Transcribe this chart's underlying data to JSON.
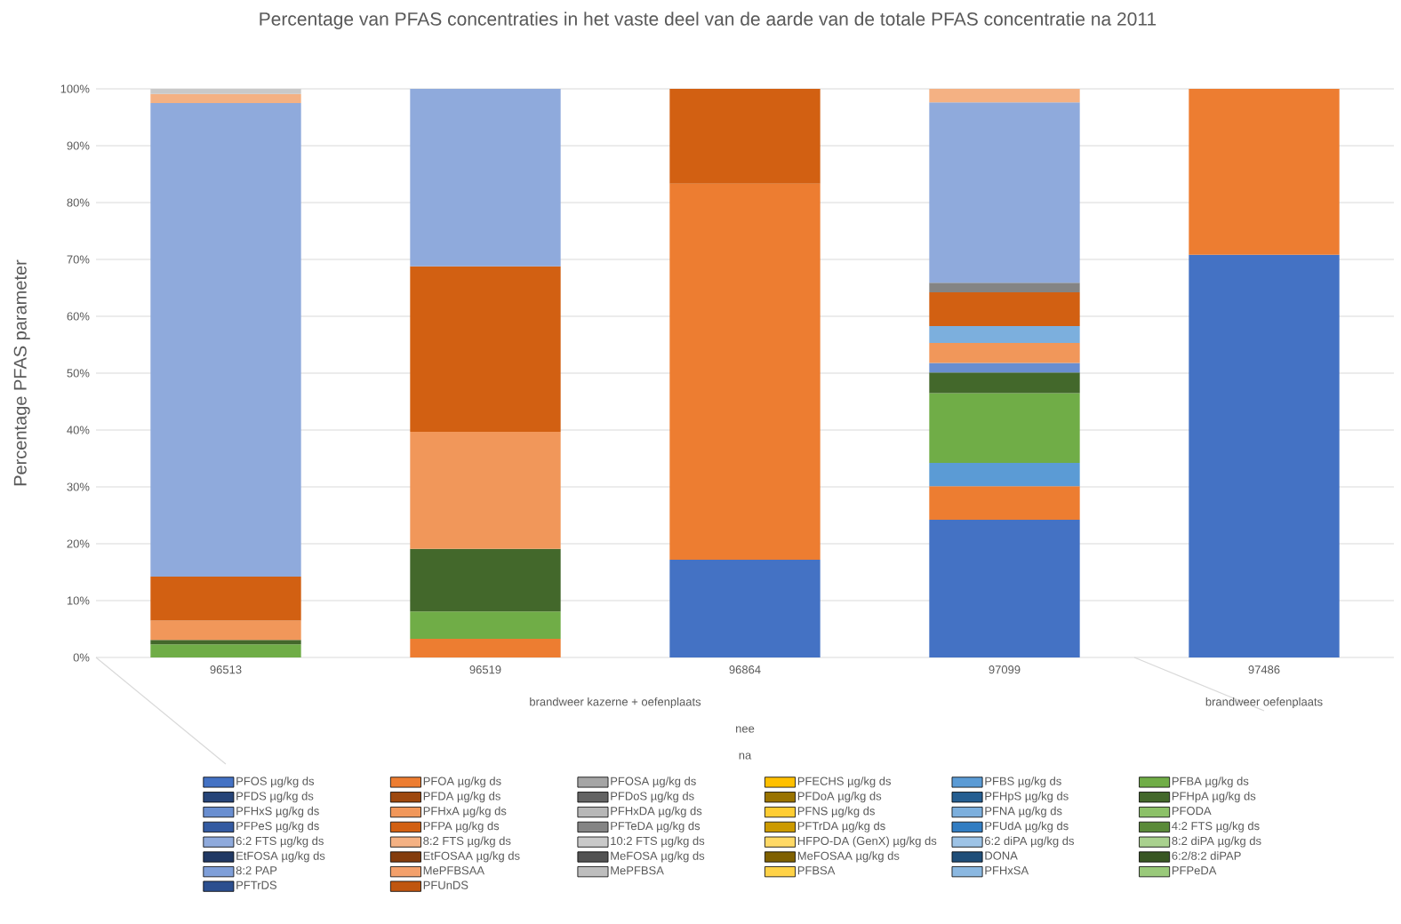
{
  "chart_data": {
    "type": "bar",
    "stacked": true,
    "title": "Percentage van PFAS concentraties in het vaste deel van de aarde van de totale PFAS concentratie na 2011",
    "ylabel": "Percentage PFAS parameter",
    "categories": [
      "96513",
      "96519",
      "96864",
      "97099",
      "97486"
    ],
    "annotations": [
      "brandweer kazerne + oefenplaats",
      "brandweer oefenplaats",
      "nee",
      "na"
    ],
    "ylim": [
      0,
      100
    ],
    "yticks": [
      {
        "value": 0,
        "label": "0%"
      },
      {
        "value": 10,
        "label": "10%"
      },
      {
        "value": 20,
        "label": "20%"
      },
      {
        "value": 30,
        "label": "30%"
      },
      {
        "value": 40,
        "label": "40%"
      },
      {
        "value": 50,
        "label": "50%"
      },
      {
        "value": 60,
        "label": "60%"
      },
      {
        "value": 70,
        "label": "70%"
      },
      {
        "value": 80,
        "label": "80%"
      },
      {
        "value": 90,
        "label": "90%"
      },
      {
        "value": 100,
        "label": "100%"
      }
    ],
    "grid": "y",
    "legend": "bottom",
    "series": [
      {
        "name": "PFOS  µg/kg ds",
        "color": "#4472c4",
        "values": [
          null,
          null,
          17.2,
          24.2,
          70.8
        ]
      },
      {
        "name": "PFOA µg/kg ds",
        "color": "#ed7d31",
        "values": [
          null,
          3.3,
          66.1,
          5.9,
          29.2
        ]
      },
      {
        "name": "PFOSA µg/kg ds",
        "color": "#a5a5a5",
        "values": [
          null,
          null,
          null,
          null,
          null
        ]
      },
      {
        "name": "PFECHS µg/kg ds",
        "color": "#ffc000",
        "values": [
          null,
          null,
          null,
          null,
          null
        ]
      },
      {
        "name": "PFBS µg/kg ds",
        "color": "#5b9bd5",
        "values": [
          null,
          null,
          null,
          4.1,
          null
        ]
      },
      {
        "name": "PFBA µg/kg ds",
        "color": "#70ad47",
        "values": [
          2.3,
          4.8,
          null,
          12.3,
          null
        ]
      },
      {
        "name": "PFDS µg/kg ds",
        "color": "#264478",
        "values": [
          null,
          null,
          null,
          null,
          null
        ]
      },
      {
        "name": "PFDA µg/kg ds",
        "color": "#9e480e",
        "values": [
          null,
          null,
          null,
          null,
          null
        ]
      },
      {
        "name": "PFDoS µg/kg ds",
        "color": "#636363",
        "values": [
          null,
          null,
          null,
          null,
          null
        ]
      },
      {
        "name": "PFDoA µg/kg ds",
        "color": "#997300",
        "values": [
          null,
          null,
          null,
          null,
          null
        ]
      },
      {
        "name": "PFHpS µg/kg ds",
        "color": "#255e91",
        "values": [
          null,
          null,
          null,
          null,
          null
        ]
      },
      {
        "name": "PFHpA µg/kg ds",
        "color": "#43682b",
        "values": [
          0.8,
          11.0,
          null,
          3.6,
          null
        ]
      },
      {
        "name": "PFHxS µg/kg ds",
        "color": "#698ed0",
        "values": [
          null,
          null,
          null,
          1.7,
          null
        ]
      },
      {
        "name": "PFHxA µg/kg ds",
        "color": "#f1975a",
        "values": [
          3.4,
          20.6,
          null,
          3.5,
          null
        ]
      },
      {
        "name": "PFHxDA µg/kg ds",
        "color": "#b7b7b7",
        "values": [
          null,
          null,
          null,
          null,
          null
        ]
      },
      {
        "name": "PFNS µg/kg ds",
        "color": "#ffcd33",
        "values": [
          null,
          null,
          null,
          null,
          null
        ]
      },
      {
        "name": "PFNA µg/kg ds",
        "color": "#7cafdd",
        "values": [
          null,
          null,
          null,
          3.0,
          null
        ]
      },
      {
        "name": "PFODA",
        "color": "#8cc168",
        "values": [
          null,
          null,
          null,
          null,
          null
        ]
      },
      {
        "name": "PFPeS µg/kg ds",
        "color": "#335aa1",
        "values": [
          null,
          null,
          null,
          null,
          null
        ]
      },
      {
        "name": "PFPA µg/kg ds",
        "color": "#d26012",
        "values": [
          7.7,
          29.1,
          16.7,
          5.9,
          null
        ]
      },
      {
        "name": "PFTeDA µg/kg ds",
        "color": "#848484",
        "values": [
          null,
          null,
          null,
          1.7,
          null
        ]
      },
      {
        "name": "PFTrDA µg/kg ds",
        "color": "#cc9a00",
        "values": [
          null,
          null,
          null,
          null,
          null
        ]
      },
      {
        "name": "PFUdA µg/kg ds",
        "color": "#327dc2",
        "values": [
          null,
          null,
          null,
          null,
          null
        ]
      },
      {
        "name": "4:2 FTS µg/kg ds",
        "color": "#5a8a39",
        "values": [
          null,
          null,
          null,
          null,
          null
        ]
      },
      {
        "name": "6:2 FTS µg/kg ds",
        "color": "#8faadc",
        "values": [
          83.3,
          31.2,
          null,
          31.7,
          null
        ]
      },
      {
        "name": "8:2 FTS µg/kg ds",
        "color": "#f4b183",
        "values": [
          1.6,
          null,
          null,
          2.4,
          null
        ]
      },
      {
        "name": "10:2 FTS µg/kg ds",
        "color": "#c9c9c9",
        "values": [
          0.9,
          null,
          null,
          null,
          null
        ]
      },
      {
        "name": "HFPO-DA (GenX) µg/kg ds",
        "color": "#ffd966",
        "values": [
          null,
          null,
          null,
          null,
          null
        ]
      },
      {
        "name": "6:2 diPA µg/kg ds",
        "color": "#9dc3e6",
        "values": [
          null,
          null,
          null,
          null,
          null
        ]
      },
      {
        "name": "8:2 diPA µg/kg ds",
        "color": "#a9d18e",
        "values": [
          null,
          null,
          null,
          null,
          null
        ]
      },
      {
        "name": "EtFOSA µg/kg ds",
        "color": "#203864",
        "values": [
          null,
          null,
          null,
          null,
          null
        ]
      },
      {
        "name": "EtFOSAA µg/kg ds",
        "color": "#843c0c",
        "values": [
          null,
          null,
          null,
          null,
          null
        ]
      },
      {
        "name": "MeFOSA µg/kg ds",
        "color": "#525252",
        "values": [
          null,
          null,
          null,
          null,
          null
        ]
      },
      {
        "name": "MeFOSAA µg/kg ds",
        "color": "#7f6000",
        "values": [
          null,
          null,
          null,
          null,
          null
        ]
      },
      {
        "name": "DONA",
        "color": "#1f4e79",
        "values": [
          null,
          null,
          null,
          null,
          null
        ]
      },
      {
        "name": "6:2/8:2 diPAP",
        "color": "#385723",
        "values": [
          null,
          null,
          null,
          null,
          null
        ]
      },
      {
        "name": "8:2 PAP",
        "color": "#7f9fd9",
        "values": [
          null,
          null,
          null,
          null,
          null
        ]
      },
      {
        "name": "MePFBSAA",
        "color": "#f3a06b",
        "values": [
          null,
          null,
          null,
          null,
          null
        ]
      },
      {
        "name": "MePFBSA",
        "color": "#bdbdbd",
        "values": [
          null,
          null,
          null,
          null,
          null
        ]
      },
      {
        "name": "PFBSA",
        "color": "#ffd247",
        "values": [
          null,
          null,
          null,
          null,
          null
        ]
      },
      {
        "name": "PFHxSA",
        "color": "#8bb8e1",
        "values": [
          null,
          null,
          null,
          null,
          null
        ]
      },
      {
        "name": "PFPeDA",
        "color": "#99c97a",
        "values": [
          null,
          null,
          null,
          null,
          null
        ]
      },
      {
        "name": "PFTrDS",
        "color": "#2c4f8f",
        "values": [
          null,
          null,
          null,
          null,
          null
        ]
      },
      {
        "name": "PFUnDS",
        "color": "#c0560f",
        "values": [
          null,
          null,
          null,
          null,
          null
        ]
      }
    ]
  }
}
